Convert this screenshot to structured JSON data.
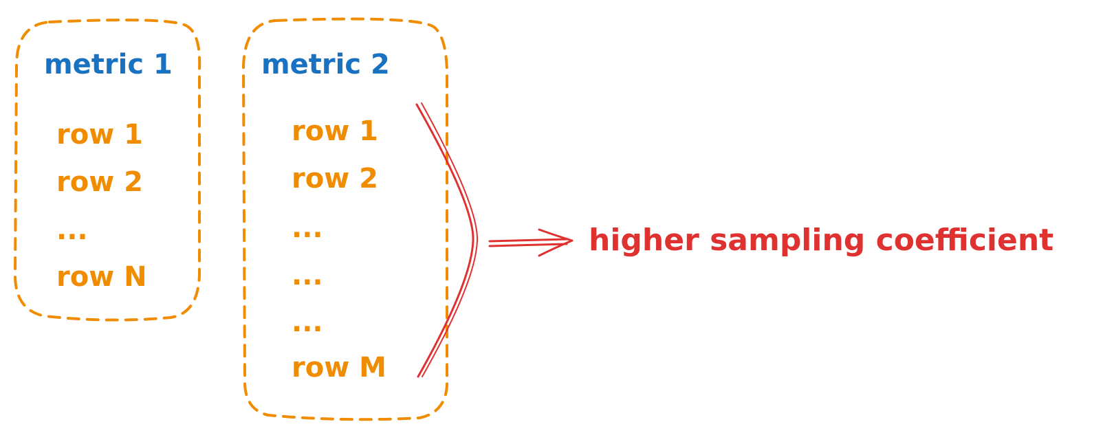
{
  "colors": {
    "box_border": "#f08c00",
    "title": "#1971c2",
    "row": "#f08c00",
    "accent": "#e03131",
    "background": "#ffffff"
  },
  "groups": [
    {
      "title": "metric 1",
      "rows": [
        "row 1",
        "row 2",
        "...",
        "row N"
      ]
    },
    {
      "title": "metric 2",
      "rows": [
        "row 1",
        "row 2",
        "...",
        "...",
        "...",
        "row M"
      ]
    }
  ],
  "annotation": {
    "text": "higher sampling coefficient",
    "arrow_icon": "double-arrow-right-icon",
    "brace_icon": "curly-brace-icon"
  }
}
